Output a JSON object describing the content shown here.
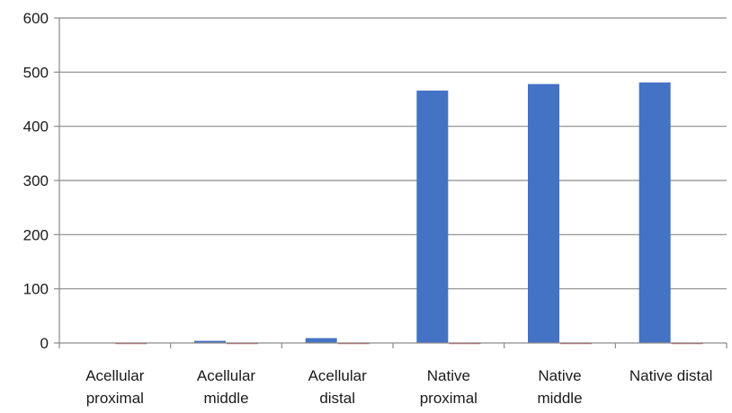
{
  "chart_data": {
    "type": "bar",
    "title": "",
    "xlabel": "",
    "ylabel": "",
    "ylim": [
      0,
      600
    ],
    "yticks": [
      0,
      100,
      200,
      300,
      400,
      500,
      600
    ],
    "grid": true,
    "legend": "none",
    "categories": [
      [
        "Acellular",
        "proximal"
      ],
      [
        "Acellular",
        "middle"
      ],
      [
        "Acellular",
        "distal"
      ],
      [
        "Native",
        "proximal"
      ],
      [
        "Native",
        "middle"
      ],
      [
        "Native distal"
      ]
    ],
    "series": [
      {
        "values": [
          0,
          4,
          9,
          466,
          478,
          481
        ],
        "color": "#4472C4"
      },
      {
        "values": [
          -2,
          -2,
          -2,
          -2,
          -2,
          -2
        ],
        "color": "#C0504D"
      }
    ]
  }
}
